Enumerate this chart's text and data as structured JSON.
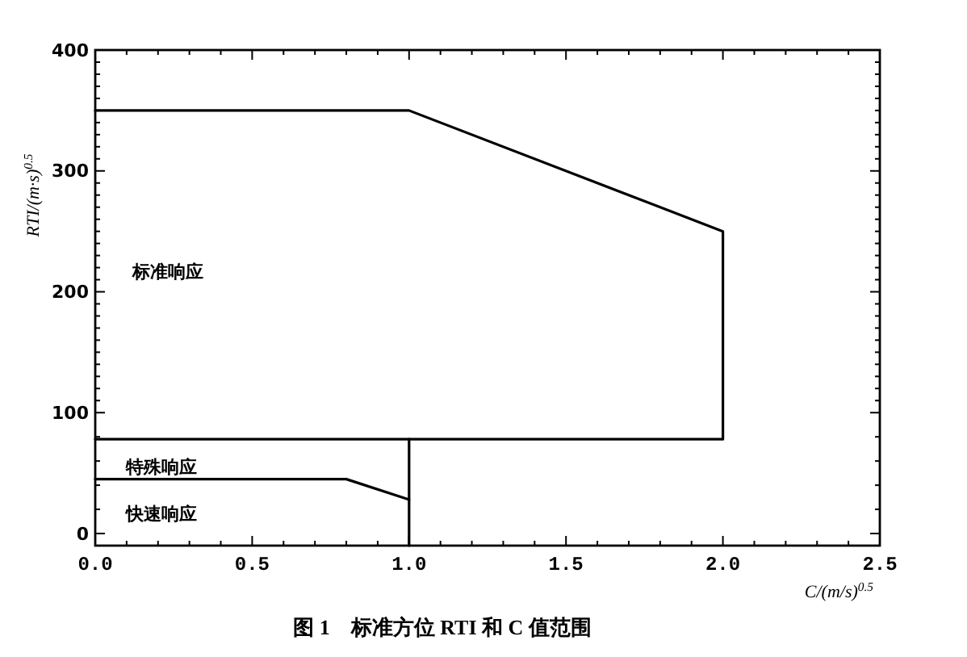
{
  "chart_data": {
    "type": "line",
    "title": "图 1　标准方位 RTI 和 C 值范围",
    "xlabel": "C/(m/s)$^{0.5}$",
    "ylabel": "RTI/(m·s)$^{0.5}$",
    "xlim": [
      0,
      2.5
    ],
    "xticks": [
      {
        "value": 0,
        "label": "0.0"
      },
      {
        "value": 0.1,
        "label": null
      },
      {
        "value": 0.2,
        "label": null
      },
      {
        "value": 0.3,
        "label": null
      },
      {
        "value": 0.4,
        "label": null
      },
      {
        "value": 0.5,
        "label": "0.5"
      },
      {
        "value": 0.6,
        "label": null
      },
      {
        "value": 0.7,
        "label": null
      },
      {
        "value": 0.8,
        "label": null
      },
      {
        "value": 0.9,
        "label": null
      },
      {
        "value": 1,
        "label": "1.0"
      },
      {
        "value": 1.1,
        "label": null
      },
      {
        "value": 1.2,
        "label": null
      },
      {
        "value": 1.3,
        "label": null
      },
      {
        "value": 1.4,
        "label": null
      },
      {
        "value": 1.5,
        "label": "1.5"
      },
      {
        "value": 1.6,
        "label": null
      },
      {
        "value": 1.7,
        "label": null
      },
      {
        "value": 1.8,
        "label": null
      },
      {
        "value": 1.9,
        "label": null
      },
      {
        "value": 2,
        "label": "2.0"
      },
      {
        "value": 2.1,
        "label": null
      },
      {
        "value": 2.2,
        "label": null
      },
      {
        "value": 2.3,
        "label": null
      },
      {
        "value": 2.4,
        "label": null
      },
      {
        "value": 2.5,
        "label": "2.5"
      }
    ],
    "ylim": [
      -10,
      400
    ],
    "yticks": [
      0,
      {
        "value": 20,
        "label": null
      },
      {
        "value": 40,
        "label": null
      },
      {
        "value": 60,
        "label": null
      },
      {
        "value": 80,
        "label": null
      },
      100,
      {
        "value": 110,
        "label": null
      },
      {
        "value": 120,
        "label": null
      },
      {
        "value": 130,
        "label": null
      },
      {
        "value": 140,
        "label": null
      },
      {
        "value": 150,
        "label": null
      },
      {
        "value": 160,
        "label": null
      },
      {
        "value": 170,
        "label": null
      },
      {
        "value": 180,
        "label": null
      },
      {
        "value": 190,
        "label": null
      },
      200,
      {
        "value": 210,
        "label": null
      },
      {
        "value": 220,
        "label": null
      },
      {
        "value": 230,
        "label": null
      },
      {
        "value": 240,
        "label": null
      },
      {
        "value": 250,
        "label": null
      },
      {
        "value": 260,
        "label": null
      },
      {
        "value": 270,
        "label": null
      },
      {
        "value": 280,
        "label": null
      },
      {
        "value": 290,
        "label": null
      },
      300,
      {
        "value": 310,
        "label": null
      },
      {
        "value": 320,
        "label": null
      },
      {
        "value": 330,
        "label": null
      },
      {
        "value": 340,
        "label": null
      },
      {
        "value": 350,
        "label": null
      },
      {
        "value": 360,
        "label": null
      },
      {
        "value": 370,
        "label": null
      },
      {
        "value": 380,
        "label": null
      },
      {
        "value": 390,
        "label": null
      },
      400
    ],
    "series": [
      {
        "color": "#000000",
        "x": [
          0,
          1,
          2,
          2,
          0
        ],
        "values": [
          350,
          350,
          250,
          78,
          78
        ]
      },
      {
        "color": "#000000",
        "x": [
          1,
          1
        ],
        "values": [
          -10,
          78
        ]
      },
      {
        "color": "#000000",
        "x": [
          0,
          0.8,
          1
        ],
        "values": [
          45,
          45,
          28
        ]
      }
    ],
    "annotations": [
      "标准响应",
      "特殊响应",
      "快速响应"
    ]
  }
}
